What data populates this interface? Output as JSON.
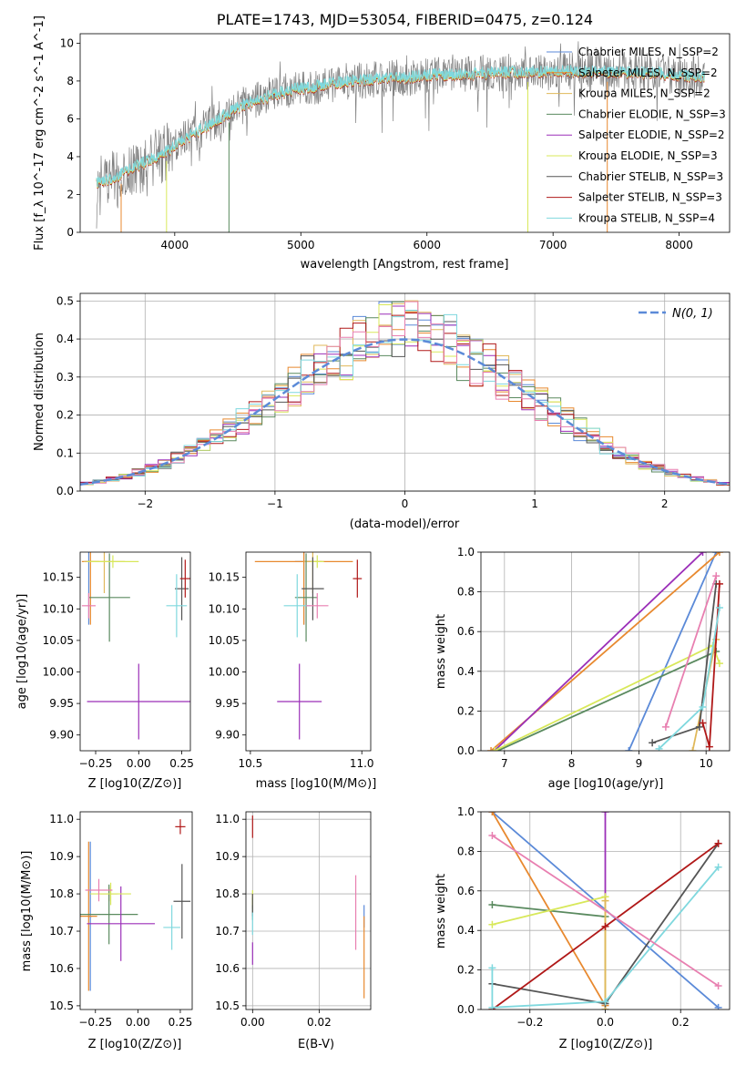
{
  "figure_title": "PLATE=1743, MJD=53054, FIBERID=0475, z=0.124",
  "colors": {
    "Chabrier MILES": "#5b8ad8",
    "Salpeter MILES": "#e8892f",
    "Kroupa MILES": "#e0b85a",
    "Chabrier ELODIE": "#5a8a5f",
    "Salpeter ELODIE": "#9b2fb8",
    "Kroupa ELODIE": "#d8e85a",
    "Chabrier STELIB": "#555555",
    "Salpeter STELIB": "#b01818",
    "Kroupa STELIB": "#7fd8de",
    "Pink": "#e87fb0"
  },
  "chart_data": [
    {
      "id": "spectrum",
      "type": "line",
      "title": "PLATE=1743, MJD=53054, FIBERID=0475, z=0.124",
      "xlabel": "wavelength [Angstrom, rest frame]",
      "ylabel": "Flux [f_λ 10^-17 erg cm^-2 s^-1 A^-1]",
      "xlim": [
        3250,
        8400
      ],
      "ylim": [
        0,
        10.5
      ],
      "xticks": [
        4000,
        5000,
        6000,
        7000,
        8000
      ],
      "yticks": [
        0,
        2,
        4,
        6,
        8,
        10
      ],
      "legend_position": "upper right",
      "legend": [
        "Chabrier MILES, N_SSP=2",
        "Salpeter MILES, N_SSP=2",
        "Kroupa MILES, N_SSP=2",
        "Chabrier ELODIE, N_SSP=3",
        "Salpeter ELODIE, N_SSP=2",
        "Kroupa ELODIE, N_SSP=3",
        "Chabrier STELIB, N_SSP=3",
        "Salpeter STELIB, N_SSP=3",
        "Kroupa STELIB, N_SSP=4"
      ],
      "continuum": [
        [
          3380,
          2.6
        ],
        [
          3500,
          2.8
        ],
        [
          3700,
          3.5
        ],
        [
          3900,
          4.1
        ],
        [
          4000,
          4.6
        ],
        [
          4200,
          5.4
        ],
        [
          4400,
          6.2
        ],
        [
          4600,
          6.9
        ],
        [
          4800,
          7.3
        ],
        [
          5000,
          7.6
        ],
        [
          5200,
          7.8
        ],
        [
          5400,
          8.0
        ],
        [
          5600,
          8.1
        ],
        [
          5800,
          8.15
        ],
        [
          6000,
          8.3
        ],
        [
          6200,
          8.35
        ],
        [
          6400,
          8.4
        ],
        [
          6600,
          8.45
        ],
        [
          6800,
          8.45
        ],
        [
          7000,
          8.5
        ],
        [
          7200,
          8.5
        ],
        [
          7500,
          8.45
        ],
        [
          7800,
          8.4
        ],
        [
          8000,
          8.3
        ],
        [
          8200,
          8.2
        ]
      ]
    },
    {
      "id": "residuals",
      "type": "histogram",
      "xlabel": "(data-model)/error",
      "ylabel": "Normed distribution",
      "xlim": [
        -2.5,
        2.5
      ],
      "ylim": [
        0,
        0.52
      ],
      "xticks": [
        -2,
        -1,
        0,
        1,
        2
      ],
      "yticks": [
        0.0,
        0.1,
        0.2,
        0.3,
        0.4,
        0.5
      ],
      "legend": [
        "N(0, 1)"
      ],
      "legend_position": "upper right",
      "bin_width": 0.1,
      "grid": true
    },
    {
      "id": "age_vs_Z",
      "type": "errorbar",
      "xlabel": "Z [log10(Z/Z⊙)]",
      "ylabel": "age [log10(age/yr)]",
      "xlim": [
        -0.34,
        0.3
      ],
      "ylim": [
        9.875,
        10.19
      ],
      "xticks": [
        -0.25,
        0.0,
        0.25
      ],
      "yticks": [
        9.9,
        9.95,
        10.0,
        10.05,
        10.1,
        10.15
      ],
      "points": [
        {
          "model": "Chabrier MILES",
          "x": -0.29,
          "xerr": 0.02,
          "y": 10.175,
          "yerr": 0.1
        },
        {
          "model": "Salpeter MILES",
          "x": -0.28,
          "xerr": 0.05,
          "y": 10.175,
          "yerr": 0.1
        },
        {
          "model": "Kroupa MILES",
          "x": -0.2,
          "xerr": 0.12,
          "y": 10.175,
          "yerr": 0.05
        },
        {
          "model": "Chabrier ELODIE",
          "x": -0.17,
          "xerr": 0.12,
          "y": 10.118,
          "yerr": 0.07
        },
        {
          "model": "Salpeter ELODIE",
          "x": 0.0,
          "xerr": 0.3,
          "y": 9.953,
          "yerr": 0.06
        },
        {
          "model": "Kroupa ELODIE",
          "x": -0.15,
          "xerr": 0.15,
          "y": 10.175,
          "yerr": 0.01
        },
        {
          "model": "Chabrier STELIB",
          "x": 0.25,
          "xerr": 0.04,
          "y": 10.132,
          "yerr": 0.05
        },
        {
          "model": "Salpeter STELIB",
          "x": 0.27,
          "xerr": 0.03,
          "y": 10.148,
          "yerr": 0.03
        },
        {
          "model": "Kroupa STELIB",
          "x": 0.22,
          "xerr": 0.06,
          "y": 10.105,
          "yerr": 0.05
        },
        {
          "model": "Pink",
          "x": -0.29,
          "xerr": 0.04,
          "y": 10.105,
          "yerr": 0.02
        }
      ]
    },
    {
      "id": "age_vs_mass",
      "type": "errorbar",
      "xlabel": "mass [log10(M/M⊙)]",
      "ylabel": "",
      "xlim": [
        10.48,
        11.04
      ],
      "ylim": [
        9.875,
        10.19
      ],
      "xticks": [
        10.5,
        11.0
      ],
      "yticks": [
        9.9,
        9.95,
        10.0,
        10.05,
        10.1,
        10.15
      ],
      "points": [
        {
          "model": "Chabrier MILES",
          "x": 10.74,
          "xerr": 0.04,
          "y": 10.175,
          "yerr": 0.1
        },
        {
          "model": "Salpeter MILES",
          "x": 10.74,
          "xerr": 0.22,
          "y": 10.175,
          "yerr": 0.1
        },
        {
          "model": "Kroupa MILES",
          "x": 10.78,
          "xerr": 0.04,
          "y": 10.175,
          "yerr": 0.05
        },
        {
          "model": "Chabrier ELODIE",
          "x": 10.75,
          "xerr": 0.05,
          "y": 10.118,
          "yerr": 0.07
        },
        {
          "model": "Salpeter ELODIE",
          "x": 10.72,
          "xerr": 0.1,
          "y": 9.953,
          "yerr": 0.06
        },
        {
          "model": "Kroupa ELODIE",
          "x": 10.8,
          "xerr": 0.03,
          "y": 10.175,
          "yerr": 0.01
        },
        {
          "model": "Chabrier STELIB",
          "x": 10.78,
          "xerr": 0.05,
          "y": 10.132,
          "yerr": 0.05
        },
        {
          "model": "Salpeter STELIB",
          "x": 10.98,
          "xerr": 0.02,
          "y": 10.148,
          "yerr": 0.03
        },
        {
          "model": "Kroupa STELIB",
          "x": 10.71,
          "xerr": 0.06,
          "y": 10.105,
          "yerr": 0.05
        },
        {
          "model": "Pink",
          "x": 10.8,
          "xerr": 0.05,
          "y": 10.105,
          "yerr": 0.02
        }
      ]
    },
    {
      "id": "weight_vs_age",
      "type": "line",
      "xlabel": "age [log10(age/yr)]",
      "ylabel": "mass weight",
      "xlim": [
        6.65,
        10.35
      ],
      "ylim": [
        0,
        1
      ],
      "xticks": [
        7,
        8,
        9,
        10
      ],
      "yticks": [
        0.0,
        0.2,
        0.4,
        0.6,
        0.8,
        1.0
      ],
      "grid": true,
      "series": [
        {
          "model": "Chabrier MILES",
          "x": [
            8.85,
            10.15
          ],
          "y": [
            0.0,
            1.0
          ]
        },
        {
          "model": "Salpeter MILES",
          "x": [
            6.8,
            10.2
          ],
          "y": [
            0.0,
            1.0
          ]
        },
        {
          "model": "Salpeter ELODIE",
          "x": [
            6.85,
            9.95
          ],
          "y": [
            0.0,
            1.0
          ]
        },
        {
          "model": "Chabrier ELODIE",
          "x": [
            6.9,
            10.15
          ],
          "y": [
            0.0,
            0.5
          ]
        },
        {
          "model": "Kroupa ELODIE",
          "x": [
            6.85,
            10.1,
            10.2
          ],
          "y": [
            0.0,
            0.53,
            0.44
          ]
        },
        {
          "model": "Kroupa MILES",
          "x": [
            9.8,
            10.15
          ],
          "y": [
            0.0,
            0.56
          ]
        },
        {
          "model": "Chabrier STELIB",
          "x": [
            9.2,
            9.9,
            10.15
          ],
          "y": [
            0.04,
            0.12,
            0.84
          ]
        },
        {
          "model": "Salpeter STELIB",
          "x": [
            9.95,
            10.05,
            10.2
          ],
          "y": [
            0.14,
            0.02,
            0.84
          ]
        },
        {
          "model": "Kroupa STELIB",
          "x": [
            9.3,
            9.95,
            10.2
          ],
          "y": [
            0.01,
            0.22,
            0.72
          ]
        },
        {
          "model": "Pink",
          "x": [
            9.4,
            10.15
          ],
          "y": [
            0.12,
            0.88
          ]
        }
      ]
    },
    {
      "id": "mass_vs_Z",
      "type": "errorbar",
      "xlabel": "Z [log10(Z/Z⊙)]",
      "ylabel": "mass [log10(M/M⊙)]",
      "xlim": [
        -0.34,
        0.32
      ],
      "ylim": [
        10.49,
        11.02
      ],
      "xticks": [
        -0.25,
        0.0,
        0.25
      ],
      "yticks": [
        10.5,
        10.6,
        10.7,
        10.8,
        10.9,
        11.0
      ],
      "points": [
        {
          "model": "Chabrier MILES",
          "x": -0.28,
          "xerr": 0.01,
          "y": 10.74,
          "yerr": 0.2
        },
        {
          "model": "Salpeter MILES",
          "x": -0.29,
          "xerr": 0.05,
          "y": 10.74,
          "yerr": 0.2
        },
        {
          "model": "Kroupa MILES",
          "x": -0.17,
          "xerr": 0.05,
          "y": 10.8,
          "yerr": 0.02
        },
        {
          "model": "Chabrier ELODIE",
          "x": -0.17,
          "xerr": 0.17,
          "y": 10.745,
          "yerr": 0.08
        },
        {
          "model": "Salpeter ELODIE",
          "x": -0.1,
          "xerr": 0.2,
          "y": 10.72,
          "yerr": 0.1
        },
        {
          "model": "Kroupa ELODIE",
          "x": -0.16,
          "xerr": 0.12,
          "y": 10.8,
          "yerr": 0.03
        },
        {
          "model": "Chabrier STELIB",
          "x": 0.26,
          "xerr": 0.05,
          "y": 10.78,
          "yerr": 0.1
        },
        {
          "model": "Salpeter STELIB",
          "x": 0.25,
          "xerr": 0.03,
          "y": 10.98,
          "yerr": 0.02
        },
        {
          "model": "Kroupa STELIB",
          "x": 0.2,
          "xerr": 0.05,
          "y": 10.71,
          "yerr": 0.06
        },
        {
          "model": "Pink",
          "x": -0.23,
          "xerr": 0.08,
          "y": 10.81,
          "yerr": 0.03
        }
      ]
    },
    {
      "id": "mass_vs_ebv",
      "type": "errorbar",
      "xlabel": "E(B-V)",
      "ylabel": "",
      "xlim": [
        -0.002,
        0.0355
      ],
      "ylim": [
        10.49,
        11.02
      ],
      "xticks": [
        0.0,
        0.02
      ],
      "yticks": [
        10.5,
        10.6,
        10.7,
        10.8,
        10.9,
        11.0
      ],
      "grid": true,
      "points": [
        {
          "model": "Chabrier MILES",
          "x": 0.0335,
          "xerr": 0.0,
          "y": 10.74,
          "yerr": 0.03
        },
        {
          "model": "Salpeter MILES",
          "x": 0.0335,
          "xerr": 0.0,
          "y": 10.63,
          "yerr": 0.11
        },
        {
          "model": "Kroupa MILES",
          "x": 0.0,
          "xerr": 0.0,
          "y": 10.78,
          "yerr": 0.02
        },
        {
          "model": "Chabrier ELODIE",
          "x": 0.0,
          "xerr": 0.0,
          "y": 10.76,
          "yerr": 0.03
        },
        {
          "model": "Salpeter ELODIE",
          "x": 0.0,
          "xerr": 0.0,
          "y": 10.64,
          "yerr": 0.03
        },
        {
          "model": "Kroupa ELODIE",
          "x": 0.0,
          "xerr": 0.0,
          "y": 10.79,
          "yerr": 0.02
        },
        {
          "model": "Chabrier STELIB",
          "x": 0.0,
          "xerr": 0.0,
          "y": 10.77,
          "yerr": 0.03
        },
        {
          "model": "Salpeter STELIB",
          "x": 0.0,
          "xerr": 0.0,
          "y": 10.98,
          "yerr": 0.03
        },
        {
          "model": "Kroupa STELIB",
          "x": 0.0,
          "xerr": 0.0,
          "y": 10.72,
          "yerr": 0.03
        },
        {
          "model": "Pink",
          "x": 0.031,
          "xerr": 0.0,
          "y": 10.75,
          "yerr": 0.1
        }
      ]
    },
    {
      "id": "weight_vs_Z",
      "type": "line",
      "xlabel": "Z [log10(Z/Z⊙)]",
      "ylabel": "mass weight",
      "xlim": [
        -0.33,
        0.33
      ],
      "ylim": [
        0,
        1
      ],
      "xticks": [
        -0.2,
        0.0,
        0.2
      ],
      "yticks": [
        0.0,
        0.2,
        0.4,
        0.6,
        0.8,
        1.0
      ],
      "grid": true,
      "series": [
        {
          "model": "Chabrier MILES",
          "x": [
            -0.3,
            0.3
          ],
          "y": [
            1.0,
            0.01
          ]
        },
        {
          "model": "Salpeter MILES",
          "x": [
            -0.3,
            0.0
          ],
          "y": [
            1.0,
            0.02
          ]
        },
        {
          "model": "Salpeter ELODIE",
          "x": [
            0.0,
            0.0
          ],
          "y": [
            1.0,
            0.0
          ]
        },
        {
          "model": "Chabrier ELODIE",
          "x": [
            -0.3,
            0.0
          ],
          "y": [
            0.53,
            0.47
          ]
        },
        {
          "model": "Kroupa ELODIE",
          "x": [
            -0.3,
            0.0,
            0.0
          ],
          "y": [
            0.43,
            0.57,
            0.0
          ]
        },
        {
          "model": "Kroupa MILES",
          "x": [
            0.0,
            0.0
          ],
          "y": [
            0.55,
            0.0
          ]
        },
        {
          "model": "Chabrier STELIB",
          "x": [
            -0.3,
            0.0,
            0.3
          ],
          "y": [
            0.13,
            0.03,
            0.84
          ]
        },
        {
          "model": "Salpeter STELIB",
          "x": [
            -0.3,
            0.0,
            0.3
          ],
          "y": [
            0.0,
            0.42,
            0.84
          ]
        },
        {
          "model": "Kroupa STELIB",
          "x": [
            -0.3,
            -0.3,
            0.0,
            0.3
          ],
          "y": [
            0.21,
            0.01,
            0.04,
            0.72
          ]
        },
        {
          "model": "Pink",
          "x": [
            -0.3,
            0.3
          ],
          "y": [
            0.88,
            0.12
          ]
        }
      ]
    }
  ]
}
